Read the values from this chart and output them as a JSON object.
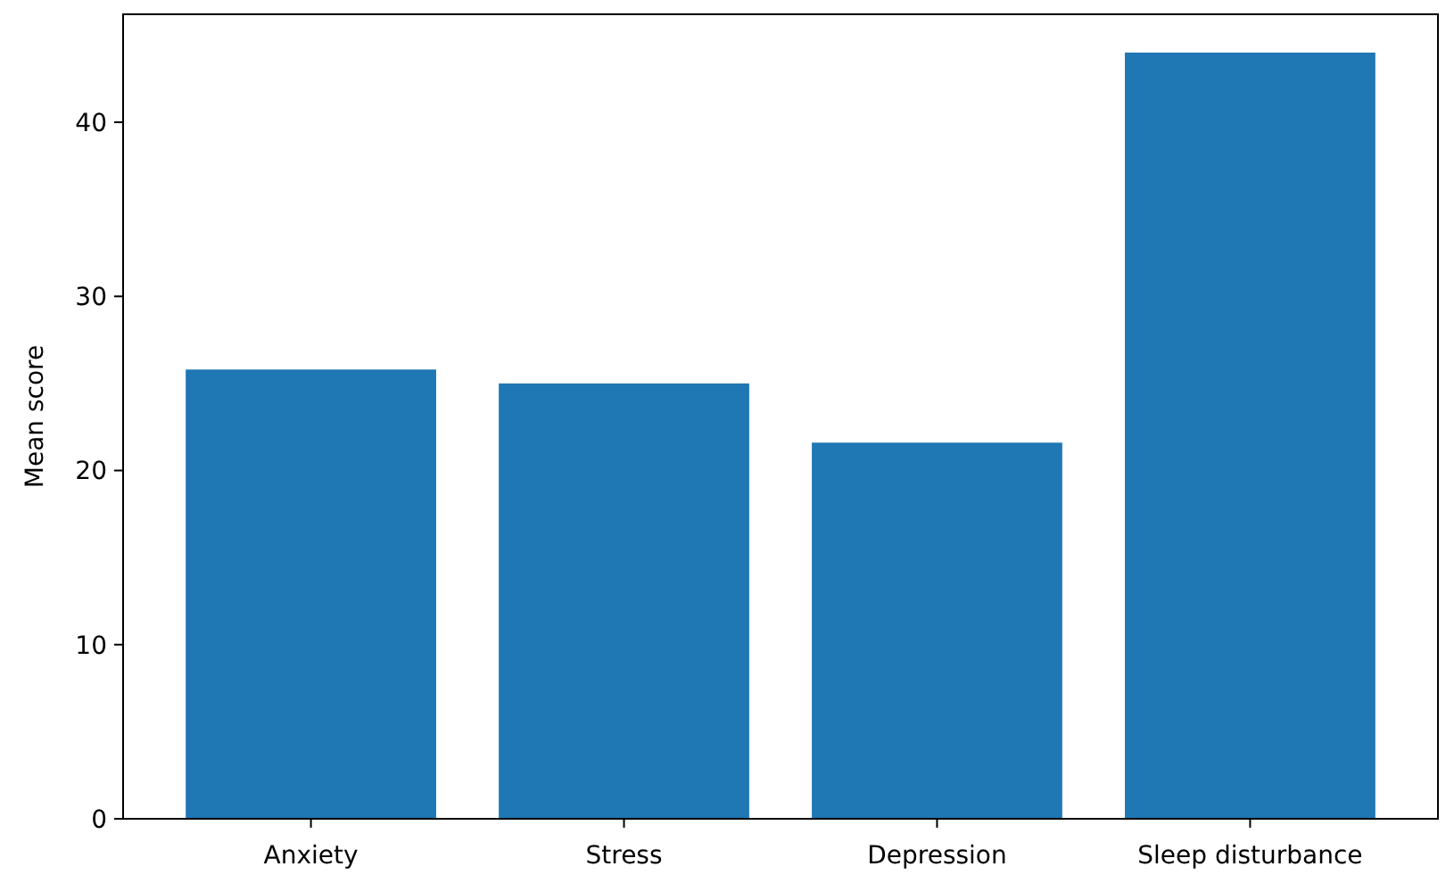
{
  "chart_data": {
    "type": "bar",
    "ylabel": "Mean score",
    "categories": [
      "Anxiety",
      "Stress",
      "Depression",
      "Sleep disturbance"
    ],
    "values": [
      25.8,
      25.0,
      21.6,
      44.0
    ],
    "color": "#1f77b4",
    "ylim": [
      0,
      46.2
    ],
    "yticks": [
      0,
      10,
      20,
      30,
      40
    ],
    "grid": false
  }
}
